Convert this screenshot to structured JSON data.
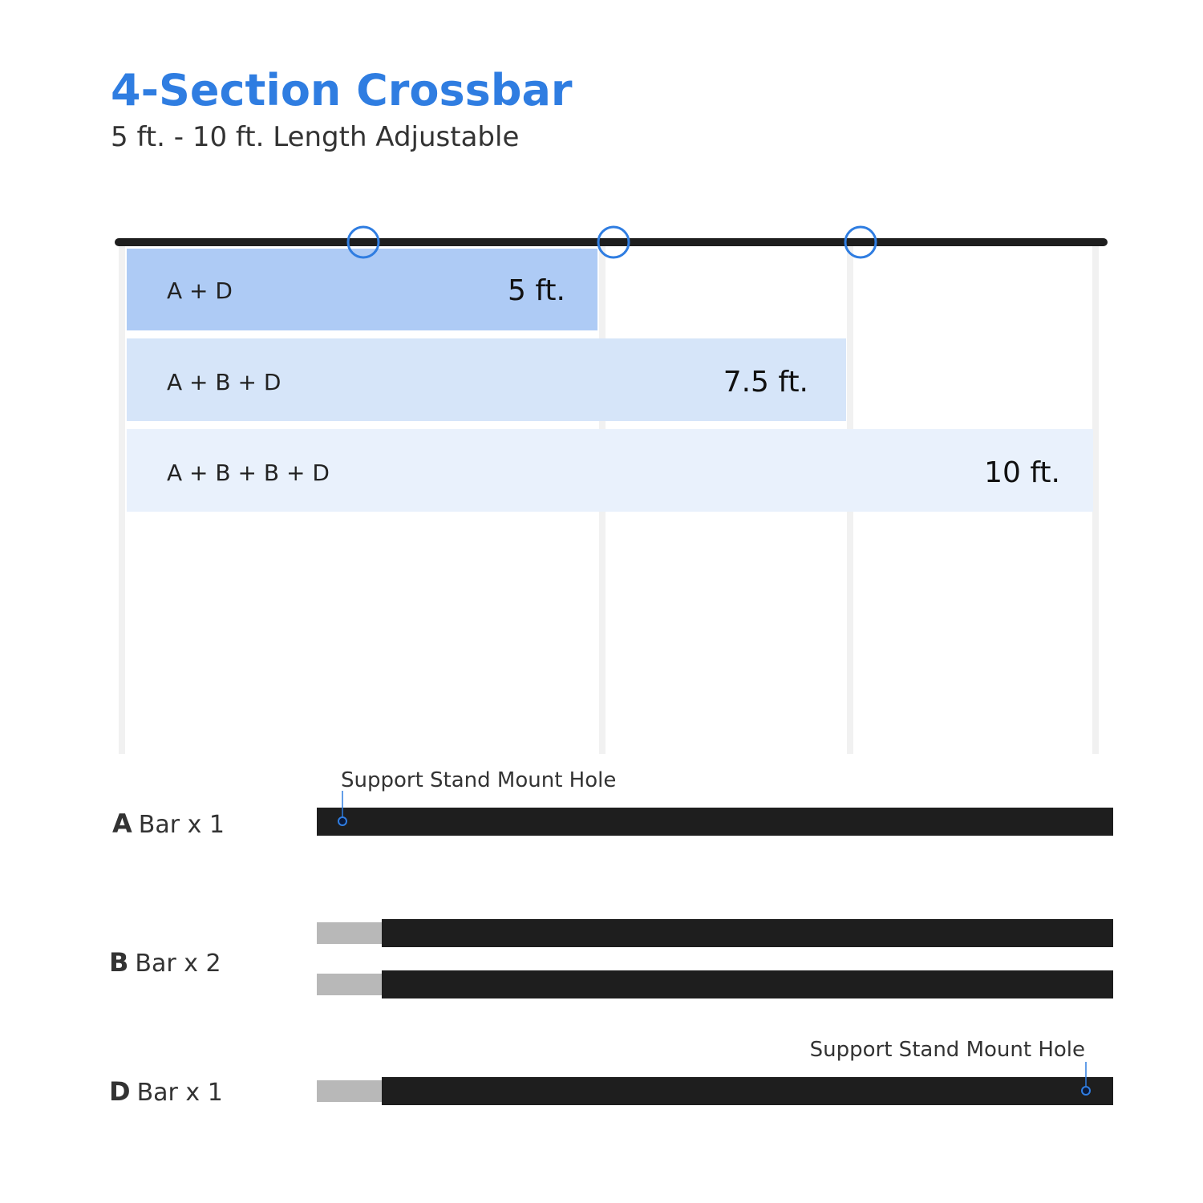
{
  "header": {
    "title": "4-Section Crossbar",
    "subtitle": "5 ft. - 10 ft. Length Adjustable"
  },
  "configurations": [
    {
      "parts": "A + D",
      "length": "5 ft."
    },
    {
      "parts": "A + B + D",
      "length": "7.5 ft."
    },
    {
      "parts": "A + B + B + D",
      "length": "10 ft."
    }
  ],
  "parts": [
    {
      "letter": "A",
      "label": "Bar x 1",
      "note": "Support Stand Mount Hole"
    },
    {
      "letter": "B",
      "label": "Bar x 2"
    },
    {
      "letter": "D",
      "label": "Bar x 1",
      "note": "Support Stand Mount Hole"
    }
  ]
}
